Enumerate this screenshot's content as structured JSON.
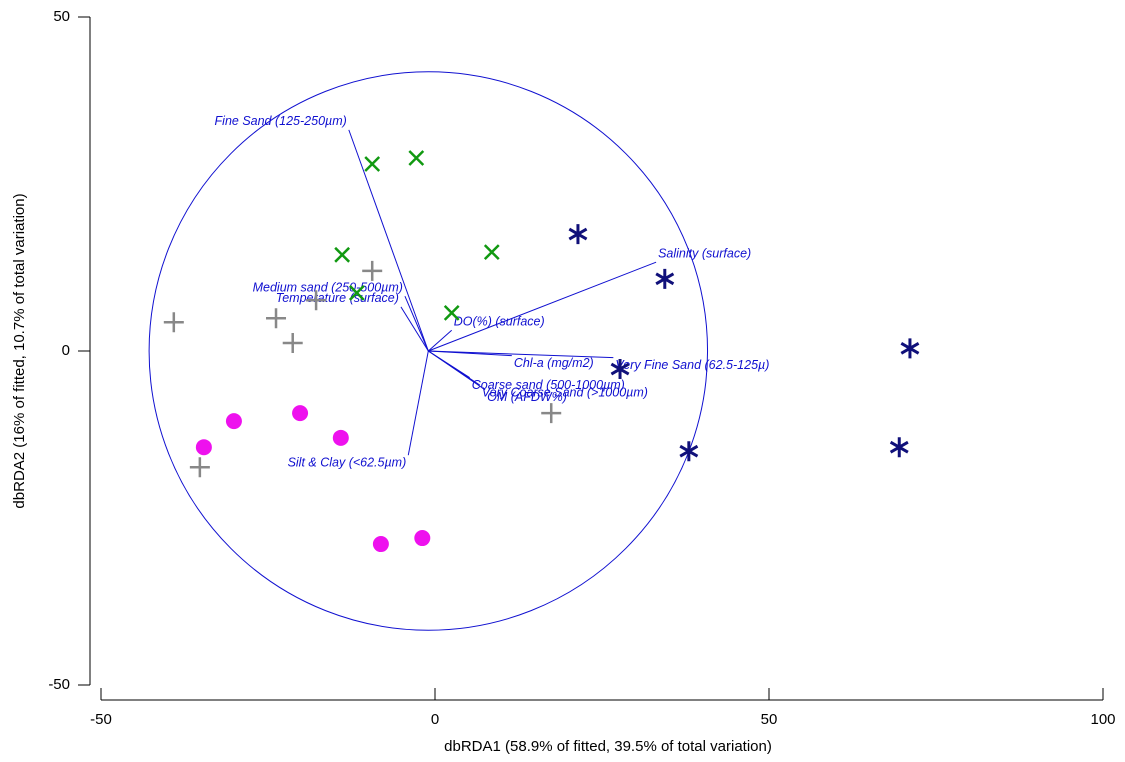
{
  "chart_data": {
    "type": "scatter",
    "x_label": "dbRDA1 (58.9% of fitted, 39.5% of total variation)",
    "y_label": "dbRDA2 (16% of fitted, 10.7% of total variation)",
    "xlim": [
      -50,
      100
    ],
    "xticks": [
      -50,
      0,
      50,
      100
    ],
    "ylim": [
      -50,
      50
    ],
    "yticks": [
      -50,
      0,
      50
    ],
    "series": [
      {
        "marker": "x",
        "color": "#119911",
        "x": [
          -9.4,
          -2.8,
          -13.9,
          8.5,
          -11.7,
          2.5
        ],
        "y": [
          28.0,
          28.9,
          14.4,
          14.8,
          8.7,
          5.7
        ]
      },
      {
        "marker": "asterisk",
        "color": "#10107a",
        "x": [
          21.4,
          34.4,
          71.1,
          27.7,
          38.0,
          69.5
        ],
        "y": [
          17.5,
          10.8,
          0.4,
          -2.7,
          -15.0,
          -14.4
        ]
      },
      {
        "marker": "plus",
        "color": "#888888",
        "x": [
          -39.1,
          -23.8,
          -21.3,
          -17.8,
          -9.4,
          17.4,
          -35.2
        ],
        "y": [
          4.3,
          4.9,
          1.2,
          7.6,
          12.0,
          -9.3,
          -17.4
        ]
      },
      {
        "marker": "circle",
        "color": "#ee11ee",
        "x": [
          -30.1,
          -34.6,
          -20.2,
          -14.1,
          -8.1,
          -1.9
        ],
        "y": [
          -10.5,
          -14.4,
          -9.3,
          -13.0,
          -28.9,
          -28.0
        ]
      }
    ],
    "circle": {
      "x": -1.0,
      "y": 0,
      "r": 41.8,
      "color": "#1010d0"
    },
    "vectors": [
      {
        "label": "Fine Sand (125-250µm)",
        "x": -12.9,
        "y": 33.1
      },
      {
        "label": "Salinity (surface)",
        "x": 33.1,
        "y": 13.3
      },
      {
        "label": "Medium sand (250-500µm)",
        "x": -4.5,
        "y": 8.2
      },
      {
        "label": "Temperature (surface)",
        "x": -5.1,
        "y": 6.6
      },
      {
        "label": "DO(%) (surface)",
        "x": 2.5,
        "y": 3.1
      },
      {
        "label": "Chl-a (mg/m2)",
        "x": 11.5,
        "y": -0.7
      },
      {
        "label": "Very Fine Sand (62.5-125µ)",
        "x": 26.7,
        "y": -1.0
      },
      {
        "label": "Coarse sand (500-1000µm)",
        "x": 5.2,
        "y": -4.0
      },
      {
        "label": "Very Coarse Sand (>1000µm)",
        "x": 6.7,
        "y": -5.1
      },
      {
        "label": "OM (AFDW%)",
        "x": 7.5,
        "y": -5.8
      },
      {
        "label": "Silt & Clay (<62.5µm)",
        "x": -4.0,
        "y": -15.6
      }
    ]
  }
}
